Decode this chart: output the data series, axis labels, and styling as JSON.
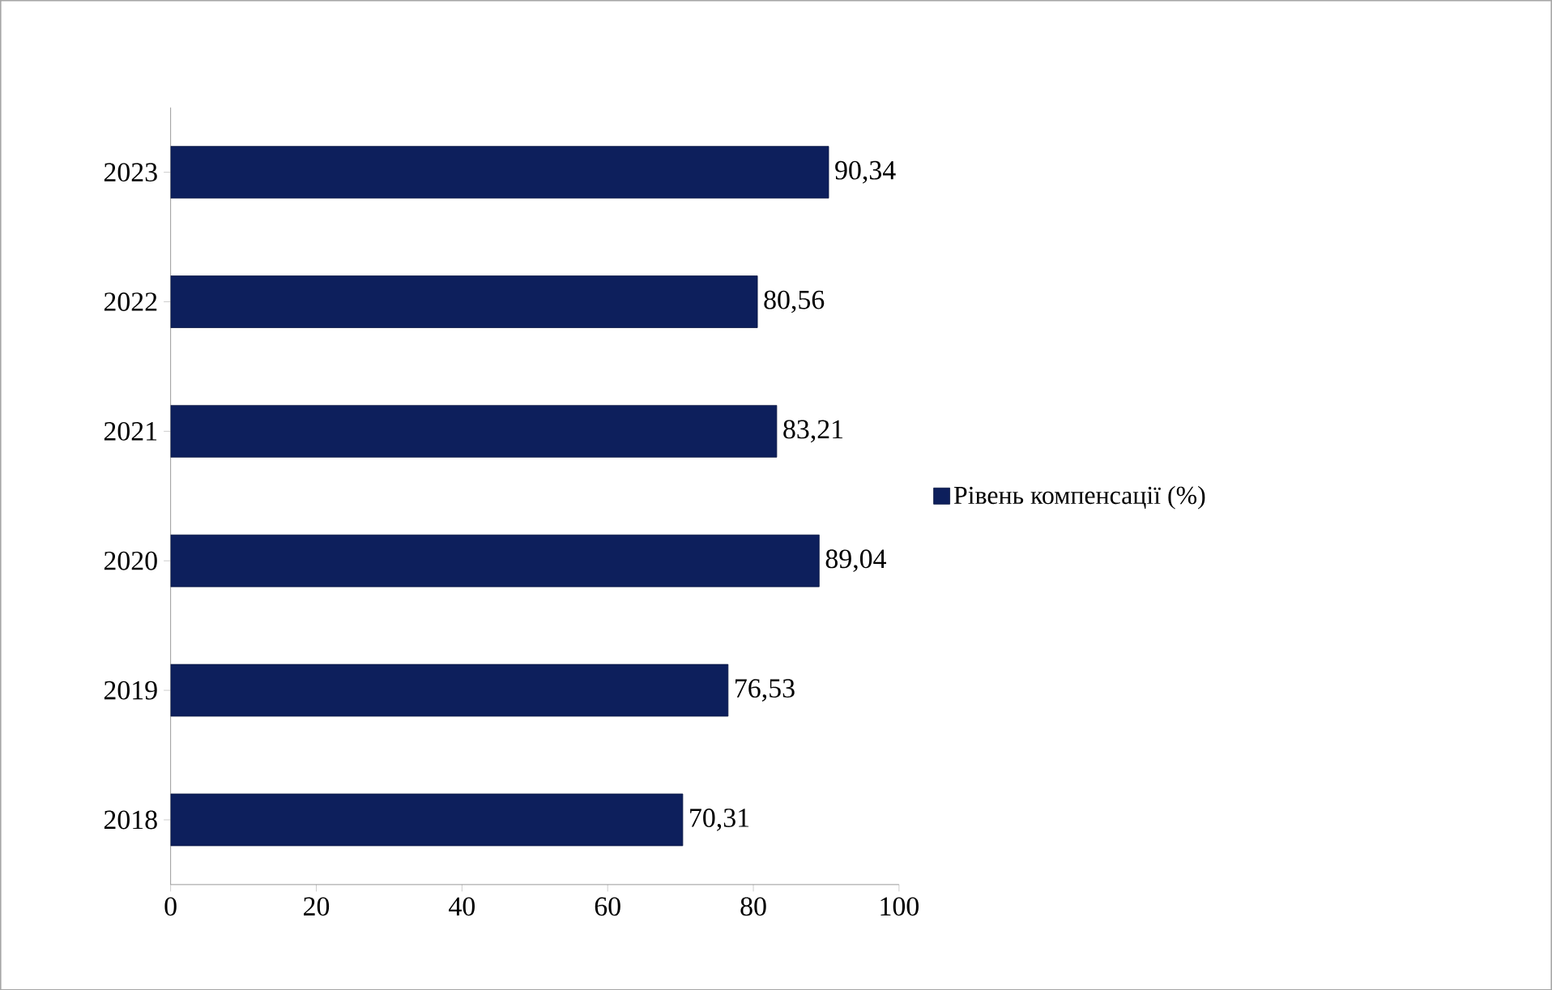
{
  "chart_data": {
    "type": "bar",
    "orientation": "horizontal",
    "categories": [
      "2023",
      "2022",
      "2021",
      "2020",
      "2019",
      "2018"
    ],
    "series": [
      {
        "name": "Рівень компенсації (%)",
        "color": "#0d1f5c",
        "values": [
          90.34,
          80.56,
          83.21,
          89.04,
          76.53,
          70.31
        ],
        "value_labels": [
          "90,34",
          "80,56",
          "83,21",
          "89,04",
          "76,53",
          "70,31"
        ]
      }
    ],
    "xlim": [
      0,
      100
    ],
    "xticks": [
      0,
      20,
      40,
      60,
      80,
      100
    ],
    "legend": "right"
  }
}
